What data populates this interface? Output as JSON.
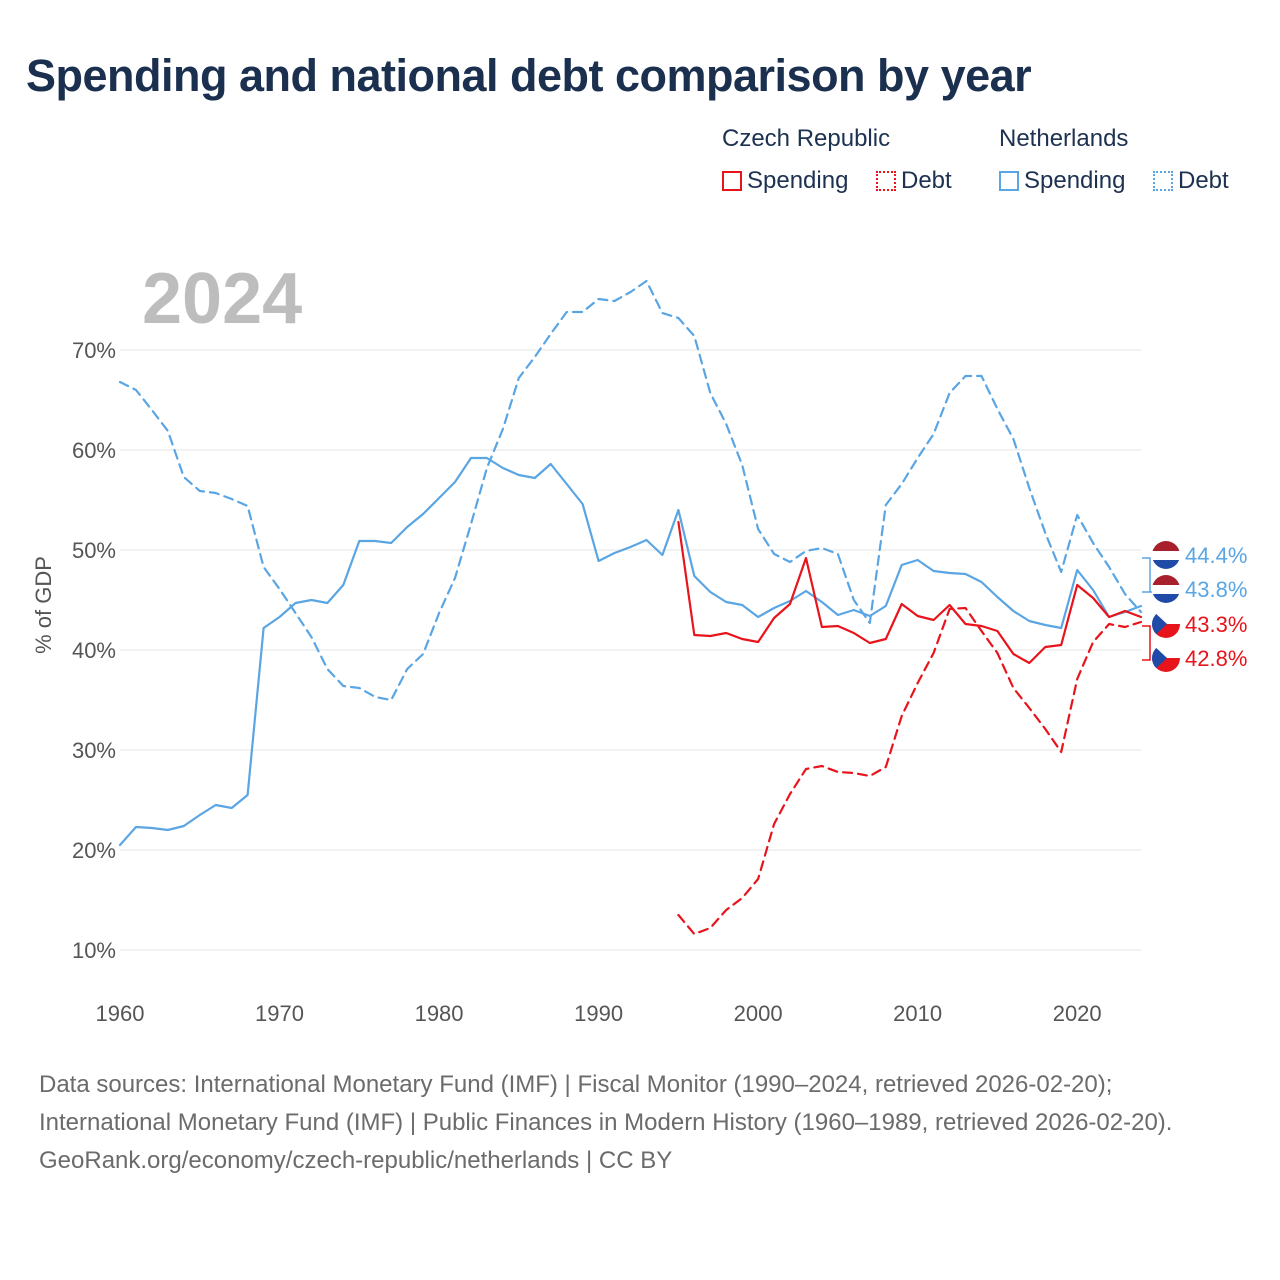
{
  "title": "Spending and national debt comparison by year",
  "legend": {
    "groups": [
      {
        "name": "Czech Republic",
        "color": "#e8141c",
        "spending_label": "Spending",
        "debt_label": "Debt"
      },
      {
        "name": "Netherlands",
        "color": "#5aa5e3",
        "spending_label": "Spending",
        "debt_label": "Debt"
      }
    ]
  },
  "footer": {
    "sources": "Data sources: International Monetary Fund (IMF) | Fiscal Monitor (1990–2024, retrieved 2026-02-20); International Monetary Fund (IMF) | Public Finances in Modern History (1960–1989, retrieved 2026-02-20).",
    "attribution": "GeoRank.org/economy/czech-republic/netherlands | CC BY"
  },
  "chart_data": {
    "type": "line",
    "title": "Spending and national debt comparison by year",
    "year_label": "2024",
    "xlabel": "",
    "ylabel": "% of GDP",
    "xlim": [
      1960,
      2024
    ],
    "ylim": [
      7,
      80
    ],
    "x_ticks": [
      1960,
      1970,
      1980,
      1990,
      2000,
      2010,
      2020
    ],
    "y_ticks": [
      10,
      20,
      30,
      40,
      50,
      60,
      70
    ],
    "y_tick_labels": [
      "10%",
      "20%",
      "30%",
      "40%",
      "50%",
      "60%",
      "70%"
    ],
    "grid": "horizontal",
    "series": [
      {
        "name": "Netherlands Spending",
        "country": "Netherlands",
        "style": "solid",
        "color": "#5aa5e3",
        "start_year": 1960,
        "values": [
          20.5,
          22.3,
          22.2,
          22.0,
          22.4,
          23.5,
          24.5,
          24.2,
          25.5,
          42.2,
          43.3,
          44.7,
          45.0,
          44.7,
          46.5,
          50.9,
          50.9,
          50.7,
          52.3,
          53.6,
          55.2,
          56.8,
          59.2,
          59.2,
          58.2,
          57.5,
          57.2,
          58.6,
          56.6,
          54.6,
          48.9,
          49.7,
          50.3,
          51.0,
          49.5,
          54.0,
          47.4,
          45.8,
          44.8,
          44.5,
          43.3,
          44.2,
          44.9,
          45.9,
          44.8,
          43.5,
          44.0,
          43.4,
          44.4,
          48.5,
          49.0,
          47.9,
          47.7,
          47.6,
          46.8,
          45.3,
          43.9,
          42.9,
          42.5,
          42.2,
          48.0,
          46.0,
          43.3,
          43.8,
          44.4
        ]
      },
      {
        "name": "Netherlands Debt",
        "country": "Netherlands",
        "style": "dashed",
        "color": "#5aa5e3",
        "start_year": 1960,
        "values": [
          66.8,
          66.0,
          64.0,
          61.9,
          57.3,
          55.9,
          55.7,
          55.1,
          54.4,
          48.3,
          46.1,
          43.7,
          41.3,
          38.1,
          36.4,
          36.2,
          35.3,
          35.0,
          38.1,
          39.6,
          43.7,
          47.2,
          52.6,
          58.2,
          62.1,
          67.2,
          69.3,
          71.6,
          73.8,
          73.8,
          75.1,
          74.9,
          75.8,
          76.9,
          73.7,
          73.2,
          71.4,
          65.7,
          62.6,
          58.5,
          52.1,
          49.6,
          48.8,
          49.9,
          50.2,
          49.6,
          45.0,
          42.7,
          54.5,
          56.6,
          59.2,
          61.6,
          65.7,
          67.4,
          67.4,
          64.1,
          61.1,
          56.2,
          51.7,
          47.8,
          53.5,
          50.7,
          48.3,
          45.6,
          43.8
        ]
      },
      {
        "name": "Czech Republic Spending",
        "country": "Czech Republic",
        "style": "solid",
        "color": "#e8141c",
        "start_year": 1995,
        "values": [
          52.8,
          41.5,
          41.4,
          41.7,
          41.1,
          40.8,
          43.2,
          44.6,
          49.2,
          42.3,
          42.4,
          41.7,
          40.7,
          41.1,
          44.6,
          43.4,
          43.0,
          44.5,
          42.6,
          42.4,
          41.9,
          39.6,
          38.7,
          40.3,
          40.5,
          46.5,
          45.2,
          43.3,
          43.9,
          43.3
        ]
      },
      {
        "name": "Czech Republic Debt",
        "country": "Czech Republic",
        "style": "dashed",
        "color": "#e8141c",
        "start_year": 1995,
        "values": [
          13.5,
          11.6,
          12.2,
          14.0,
          15.2,
          17.1,
          22.6,
          25.6,
          28.1,
          28.4,
          27.8,
          27.7,
          27.4,
          28.3,
          33.4,
          36.7,
          39.7,
          44.1,
          44.2,
          41.9,
          39.7,
          36.2,
          34.2,
          32.1,
          29.8,
          37.1,
          40.8,
          42.6,
          42.3,
          42.8
        ]
      }
    ],
    "end_labels": [
      {
        "text": "44.4%",
        "country": "Netherlands",
        "color": "#5aa5e3",
        "value": 44.4
      },
      {
        "text": "43.8%",
        "country": "Netherlands",
        "color": "#5aa5e3",
        "value": 43.8
      },
      {
        "text": "43.3%",
        "country": "Czech Republic",
        "color": "#e8141c",
        "value": 43.3
      },
      {
        "text": "42.8%",
        "country": "Czech Republic",
        "color": "#e8141c",
        "value": 42.8
      }
    ]
  }
}
